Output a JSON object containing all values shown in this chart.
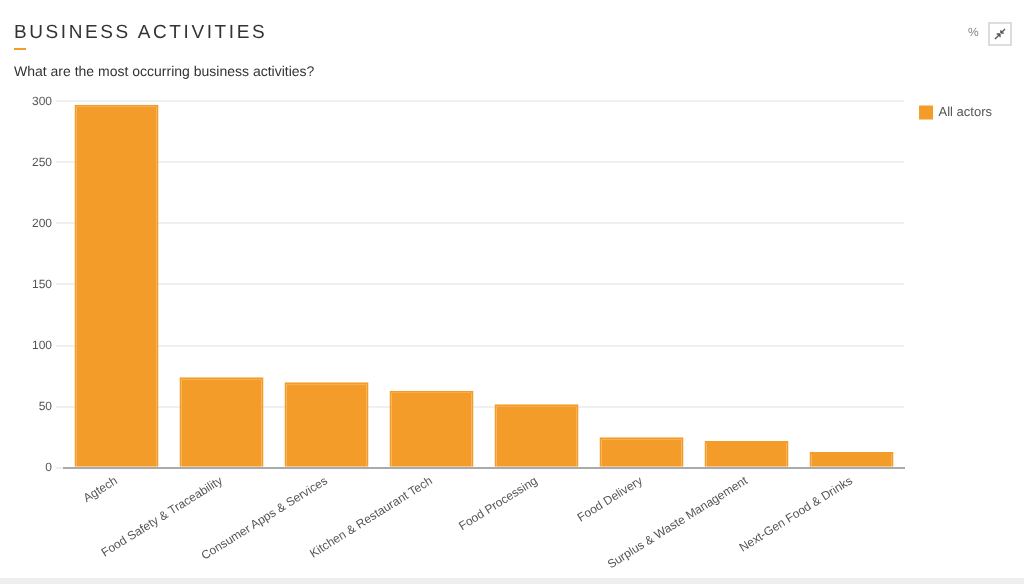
{
  "chart_data": {
    "type": "bar",
    "title": "BUSINESS ACTIVITIES",
    "subtitle": "What are the most occurring business activities?",
    "annotations": [
      "%"
    ],
    "categories": [
      "Agtech",
      "Food Safety & Traceability",
      "Consumer Apps & Services",
      "Kitchen & Restaurant Tech",
      "Food Processing",
      "Food Delivery",
      "Surplus & Waste Management",
      "Next-Gen Food & Drinks"
    ],
    "series": [
      {
        "name": "All actors",
        "color": "#f49c2a",
        "values": [
          297,
          74,
          70,
          63,
          52,
          25,
          22,
          13
        ]
      }
    ],
    "ylim": [
      0,
      300
    ],
    "yticks": [
      0,
      50,
      100,
      150,
      200,
      250,
      300
    ],
    "grid": "y",
    "legend": "top right"
  }
}
